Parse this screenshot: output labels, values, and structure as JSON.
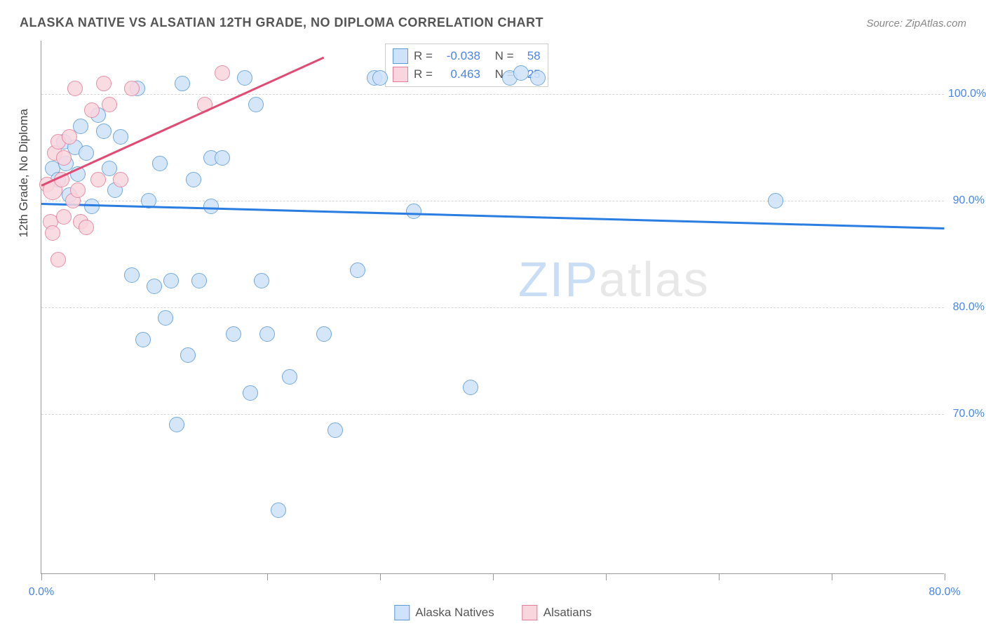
{
  "title": "ALASKA NATIVE VS ALSATIAN 12TH GRADE, NO DIPLOMA CORRELATION CHART",
  "source": "Source: ZipAtlas.com",
  "ylabel": "12th Grade, No Diploma",
  "watermark_zip": "ZIP",
  "watermark_atlas": "atlas",
  "chart": {
    "type": "scatter",
    "background_color": "#ffffff",
    "grid_color": "#d5d5d5",
    "axis_color": "#999999",
    "label_color": "#4a86e8",
    "title_color": "#555555",
    "xlim": [
      0,
      80
    ],
    "ylim": [
      55,
      105
    ],
    "xticks": [
      0,
      10,
      20,
      30,
      40,
      50,
      60,
      70,
      80
    ],
    "xtick_labels": {
      "0": "0.0%",
      "80": "80.0%"
    },
    "yticks": [
      70,
      80,
      90,
      100
    ],
    "ytick_labels": {
      "70": "70.0%",
      "80": "80.0%",
      "90": "90.0%",
      "100": "100.0%"
    },
    "point_radius": 11,
    "point_radius_large": 14,
    "series": [
      {
        "name": "Alaska Natives",
        "fill": "#cfe2f9",
        "stroke": "#5b9bd5",
        "r_value": "-0.038",
        "n_value": "58",
        "trend": {
          "x1": 0,
          "y1": 89.8,
          "x2": 80,
          "y2": 87.5,
          "color": "#2a7de1",
          "width": 2.5
        },
        "points": [
          {
            "x": 1.0,
            "y": 93.0
          },
          {
            "x": 1.5,
            "y": 92.0
          },
          {
            "x": 2.0,
            "y": 95.5
          },
          {
            "x": 2.2,
            "y": 93.5
          },
          {
            "x": 2.5,
            "y": 90.5
          },
          {
            "x": 3.0,
            "y": 95.0
          },
          {
            "x": 3.2,
            "y": 92.5
          },
          {
            "x": 3.5,
            "y": 97.0
          },
          {
            "x": 4.0,
            "y": 94.5
          },
          {
            "x": 4.5,
            "y": 89.5
          },
          {
            "x": 5.0,
            "y": 98.0
          },
          {
            "x": 5.5,
            "y": 96.5
          },
          {
            "x": 6.0,
            "y": 93.0
          },
          {
            "x": 6.5,
            "y": 91.0
          },
          {
            "x": 7.0,
            "y": 96.0
          },
          {
            "x": 8.0,
            "y": 83.0
          },
          {
            "x": 8.5,
            "y": 100.5
          },
          {
            "x": 9.0,
            "y": 77.0
          },
          {
            "x": 9.5,
            "y": 90.0
          },
          {
            "x": 10.0,
            "y": 82.0
          },
          {
            "x": 10.5,
            "y": 93.5
          },
          {
            "x": 11.0,
            "y": 79.0
          },
          {
            "x": 11.5,
            "y": 82.5
          },
          {
            "x": 12.0,
            "y": 69.0
          },
          {
            "x": 12.5,
            "y": 101.0
          },
          {
            "x": 13.0,
            "y": 75.5
          },
          {
            "x": 13.5,
            "y": 92.0
          },
          {
            "x": 14.0,
            "y": 82.5
          },
          {
            "x": 15.0,
            "y": 89.5
          },
          {
            "x": 15.0,
            "y": 94.0
          },
          {
            "x": 16.0,
            "y": 94.0
          },
          {
            "x": 17.0,
            "y": 77.5
          },
          {
            "x": 18.0,
            "y": 101.5
          },
          {
            "x": 18.5,
            "y": 72.0
          },
          {
            "x": 19.0,
            "y": 99.0
          },
          {
            "x": 19.5,
            "y": 82.5
          },
          {
            "x": 20.0,
            "y": 77.5
          },
          {
            "x": 21.0,
            "y": 61.0
          },
          {
            "x": 22.0,
            "y": 73.5
          },
          {
            "x": 25.0,
            "y": 77.5
          },
          {
            "x": 26.0,
            "y": 68.5
          },
          {
            "x": 28.0,
            "y": 83.5
          },
          {
            "x": 29.5,
            "y": 101.5
          },
          {
            "x": 30.0,
            "y": 101.5
          },
          {
            "x": 33.0,
            "y": 89.0
          },
          {
            "x": 38.0,
            "y": 72.5
          },
          {
            "x": 41.5,
            "y": 101.5
          },
          {
            "x": 42.5,
            "y": 102.0
          },
          {
            "x": 44.0,
            "y": 101.5
          },
          {
            "x": 65.0,
            "y": 90.0
          }
        ]
      },
      {
        "name": "Alsatians",
        "fill": "#f9d5de",
        "stroke": "#e27d9a",
        "r_value": "0.463",
        "n_value": "25",
        "trend": {
          "x1": 0,
          "y1": 91.5,
          "x2": 25,
          "y2": 103.5,
          "color": "#e24a73",
          "width": 2.5
        },
        "points": [
          {
            "x": 0.5,
            "y": 91.5
          },
          {
            "x": 0.8,
            "y": 88.0
          },
          {
            "x": 1.0,
            "y": 87.0
          },
          {
            "x": 1.0,
            "y": 91.0,
            "large": true
          },
          {
            "x": 1.2,
            "y": 94.5
          },
          {
            "x": 1.5,
            "y": 95.5
          },
          {
            "x": 1.5,
            "y": 84.5
          },
          {
            "x": 1.8,
            "y": 92.0
          },
          {
            "x": 2.0,
            "y": 88.5
          },
          {
            "x": 2.0,
            "y": 94.0
          },
          {
            "x": 2.5,
            "y": 96.0
          },
          {
            "x": 2.8,
            "y": 90.0
          },
          {
            "x": 3.0,
            "y": 100.5
          },
          {
            "x": 3.2,
            "y": 91.0
          },
          {
            "x": 3.5,
            "y": 88.0
          },
          {
            "x": 4.0,
            "y": 87.5
          },
          {
            "x": 4.5,
            "y": 98.5
          },
          {
            "x": 5.0,
            "y": 92.0
          },
          {
            "x": 5.5,
            "y": 101.0
          },
          {
            "x": 6.0,
            "y": 99.0
          },
          {
            "x": 7.0,
            "y": 92.0
          },
          {
            "x": 8.0,
            "y": 100.5
          },
          {
            "x": 14.5,
            "y": 99.0
          },
          {
            "x": 16.0,
            "y": 102.0
          }
        ]
      }
    ]
  },
  "legend": {
    "series1_label": "Alaska Natives",
    "series2_label": "Alsatians"
  },
  "stats_labels": {
    "r": "R =",
    "n": "N ="
  }
}
